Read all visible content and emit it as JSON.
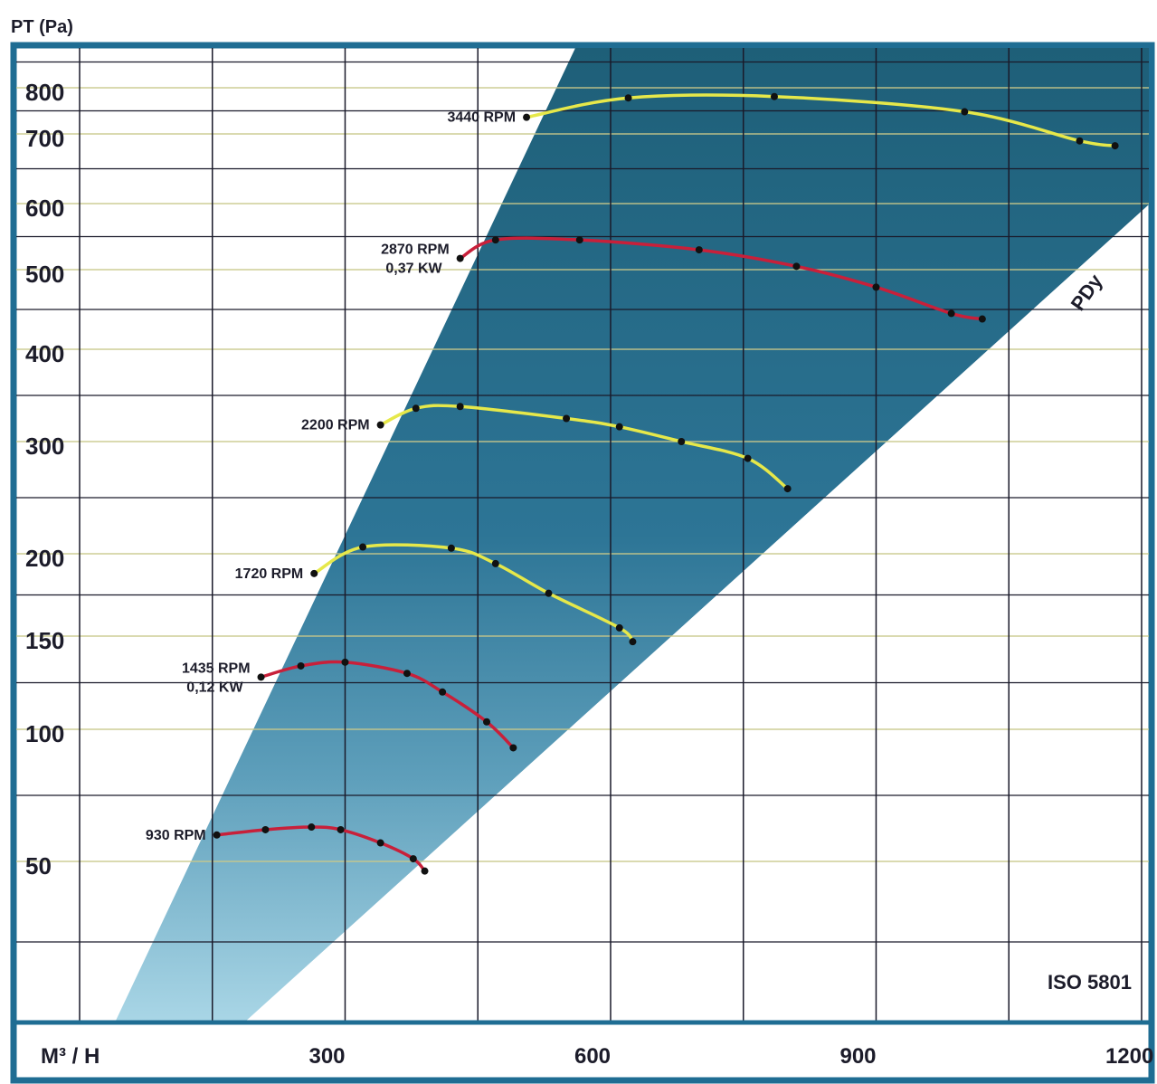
{
  "chart_data": {
    "type": "line",
    "ylabel": "PT (Pa)",
    "xlabel": "M³ / H",
    "x_ticks": [
      300,
      600,
      900,
      1200
    ],
    "y_ticks": [
      50,
      100,
      150,
      200,
      300,
      400,
      500,
      600,
      700,
      800
    ],
    "ylim": [
      0,
      900
    ],
    "xlim": [
      0,
      1250
    ],
    "reference_line": "PDy",
    "standard": "ISO 5801",
    "colors": {
      "frame": "#1f6d93",
      "wedge": "#21667f",
      "yellow_curve": "#e6e84a",
      "red_curve": "#c8203a",
      "point": "#111111"
    },
    "series": [
      {
        "name": "930 RPM",
        "sublabel": "",
        "color": "red",
        "points": [
          [
            155,
            60
          ],
          [
            210,
            62
          ],
          [
            262,
            63
          ],
          [
            295,
            62
          ],
          [
            340,
            57
          ],
          [
            377,
            51
          ],
          [
            390,
            47
          ]
        ]
      },
      {
        "name": "1435 RPM",
        "sublabel": "0,12 KW",
        "color": "red",
        "points": [
          [
            205,
            128
          ],
          [
            250,
            134
          ],
          [
            300,
            136
          ],
          [
            370,
            130
          ],
          [
            410,
            120
          ],
          [
            460,
            104
          ],
          [
            490,
            93
          ]
        ]
      },
      {
        "name": "1720 RPM",
        "sublabel": "",
        "color": "yellow",
        "points": [
          [
            265,
            188
          ],
          [
            320,
            206
          ],
          [
            420,
            205
          ],
          [
            470,
            194
          ],
          [
            530,
            176
          ],
          [
            610,
            155
          ],
          [
            625,
            147
          ]
        ]
      },
      {
        "name": "2200 RPM",
        "sublabel": "",
        "color": "yellow",
        "points": [
          [
            340,
            318
          ],
          [
            380,
            336
          ],
          [
            430,
            338
          ],
          [
            550,
            325
          ],
          [
            610,
            316
          ],
          [
            680,
            300
          ],
          [
            755,
            285
          ],
          [
            800,
            258
          ]
        ]
      },
      {
        "name": "2870 RPM",
        "sublabel": "0,37 KW",
        "color": "red",
        "points": [
          [
            430,
            517
          ],
          [
            470,
            545
          ],
          [
            565,
            545
          ],
          [
            700,
            530
          ],
          [
            810,
            505
          ],
          [
            900,
            478
          ],
          [
            985,
            445
          ],
          [
            1020,
            438
          ]
        ]
      },
      {
        "name": "3440 RPM",
        "sublabel": "",
        "color": "yellow",
        "points": [
          [
            505,
            736
          ],
          [
            620,
            778
          ],
          [
            785,
            781
          ],
          [
            1000,
            748
          ],
          [
            1130,
            690
          ],
          [
            1170,
            683
          ]
        ]
      }
    ]
  }
}
